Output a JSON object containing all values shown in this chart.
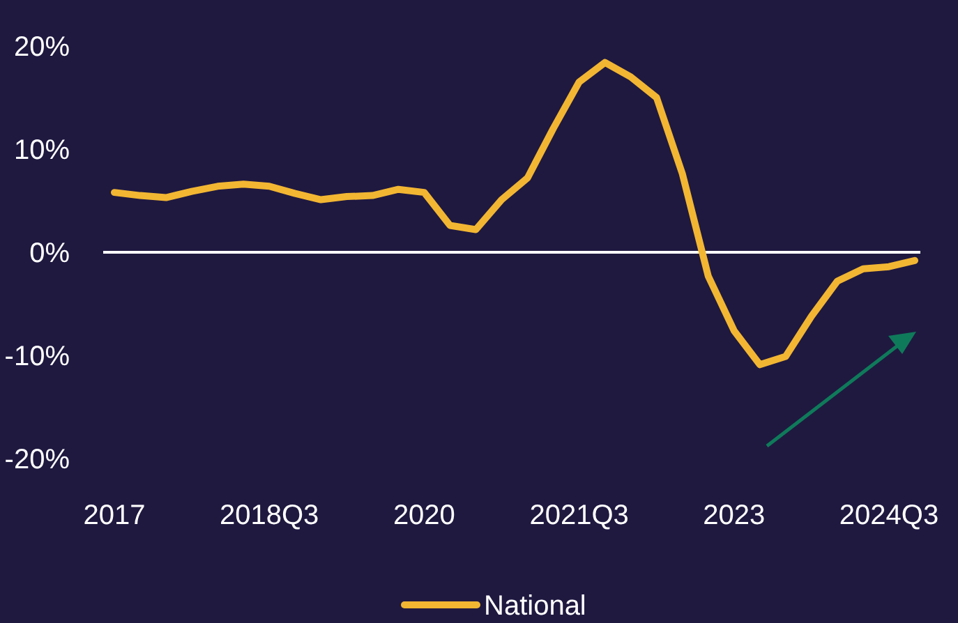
{
  "chart_data": {
    "type": "line",
    "categories": [
      "2017",
      null,
      null,
      null,
      null,
      null,
      "2018Q3",
      null,
      null,
      null,
      null,
      null,
      "2020",
      null,
      null,
      null,
      null,
      null,
      "2021Q3",
      null,
      null,
      null,
      null,
      null,
      "2023",
      null,
      null,
      null,
      null,
      null,
      "2024Q3",
      null
    ],
    "series": [
      {
        "name": "National",
        "color": "#f2b632",
        "values": [
          5.8,
          5.5,
          5.3,
          5.9,
          6.4,
          6.6,
          6.4,
          5.7,
          5.1,
          5.4,
          5.5,
          6.1,
          5.8,
          2.6,
          2.2,
          5.1,
          7.2,
          12.0,
          16.5,
          18.4,
          17.0,
          15.0,
          7.6,
          -2.3,
          -7.6,
          -10.9,
          -10.1,
          -6.2,
          -2.8,
          -1.6,
          -1.4,
          -0.8
        ]
      }
    ],
    "ylim": [
      -20,
      20
    ],
    "yticks": [
      {
        "value": -20,
        "label": "-20%"
      },
      {
        "value": -10,
        "label": "-10%"
      },
      {
        "value": 0,
        "label": "0%"
      },
      {
        "value": 10,
        "label": "10%"
      },
      {
        "value": 20,
        "label": "20%"
      }
    ],
    "ref_lines": [
      {
        "axis": "y",
        "value": 0,
        "color": "#ffffff"
      }
    ],
    "grid": false,
    "legend": "bottom",
    "marker": "none",
    "line_style": "solid"
  }
}
